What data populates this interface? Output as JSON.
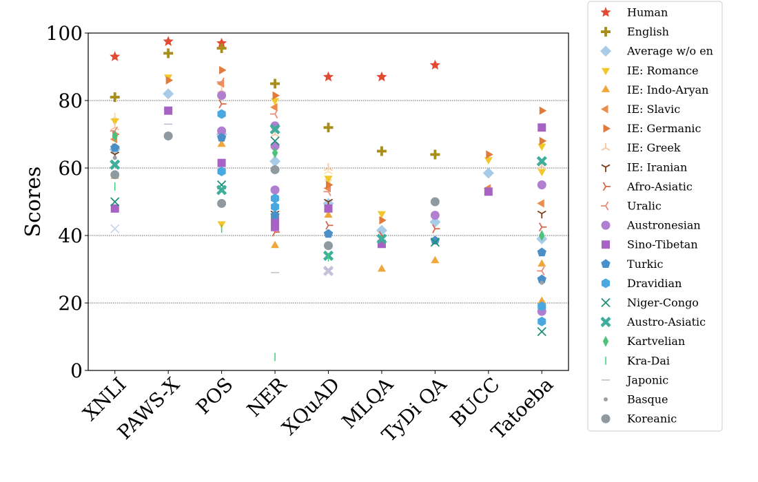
{
  "chart_data": {
    "type": "scatter",
    "ylabel": "Scores",
    "xlabel": "",
    "ylim": [
      0,
      100
    ],
    "yticks": [
      0,
      20,
      40,
      60,
      80,
      100
    ],
    "categories": [
      "XNLI",
      "PAWS-X",
      "POS",
      "NER",
      "XQuAD",
      "MLQA",
      "TyDi QA",
      "BUCC",
      "Tatoeba"
    ],
    "grid": "horizontal dotted at 20, 40, 60, 80",
    "legend_position": "outside-right",
    "series": [
      {
        "name": "Human",
        "marker": "star",
        "color": "#e24a33",
        "points": [
          {
            "c": "XNLI",
            "y": 93
          },
          {
            "c": "PAWS-X",
            "y": 97.5
          },
          {
            "c": "POS",
            "y": 97
          },
          {
            "c": "XQuAD",
            "y": 87
          },
          {
            "c": "MLQA",
            "y": 87
          },
          {
            "c": "TyDi QA",
            "y": 90.5
          }
        ]
      },
      {
        "name": "English",
        "marker": "plus",
        "color": "#a88d1a",
        "points": [
          {
            "c": "XNLI",
            "y": 81
          },
          {
            "c": "PAWS-X",
            "y": 94
          },
          {
            "c": "POS",
            "y": 95.5
          },
          {
            "c": "NER",
            "y": 85
          },
          {
            "c": "XQuAD",
            "y": 72
          },
          {
            "c": "MLQA",
            "y": 65
          },
          {
            "c": "TyDi QA",
            "y": 64
          }
        ]
      },
      {
        "name": "Average w/o en",
        "marker": "diamond",
        "color": "#a8cbe8",
        "points": [
          {
            "c": "XNLI",
            "y": 65.5
          },
          {
            "c": "PAWS-X",
            "y": 82
          },
          {
            "c": "POS",
            "y": 70
          },
          {
            "c": "NER",
            "y": 62
          },
          {
            "c": "XQuAD",
            "y": 49.5
          },
          {
            "c": "MLQA",
            "y": 41.5
          },
          {
            "c": "TyDi QA",
            "y": 44
          },
          {
            "c": "BUCC",
            "y": 58.5
          },
          {
            "c": "Tatoeba",
            "y": 39
          }
        ]
      },
      {
        "name": "IE: Romance",
        "marker": "triangle_down",
        "color": "#f2c72c",
        "points": [
          {
            "c": "XNLI",
            "y": 74
          },
          {
            "c": "PAWS-X",
            "y": 87
          },
          {
            "c": "POS",
            "y": 43.5
          },
          {
            "c": "NER",
            "y": 80
          },
          {
            "c": "XQuAD",
            "y": 57
          },
          {
            "c": "MLQA",
            "y": 46.5
          },
          {
            "c": "BUCC",
            "y": 62.5
          },
          {
            "c": "Tatoeba",
            "y": 59
          },
          {
            "c": "Tatoeba",
            "y": 66.5
          }
        ]
      },
      {
        "name": "IE: Indo-Aryan",
        "marker": "triangle_up",
        "color": "#f0a63a",
        "points": [
          {
            "c": "XNLI",
            "y": 57.5
          },
          {
            "c": "POS",
            "y": 67
          },
          {
            "c": "NER",
            "y": 37
          },
          {
            "c": "XQuAD",
            "y": 46
          },
          {
            "c": "MLQA",
            "y": 30
          },
          {
            "c": "TyDi QA",
            "y": 32.5
          },
          {
            "c": "Tatoeba",
            "y": 31.5
          },
          {
            "c": "Tatoeba",
            "y": 20.5
          }
        ]
      },
      {
        "name": "IE: Slavic",
        "marker": "triangle_left",
        "color": "#ec8b4a",
        "points": [
          {
            "c": "XNLI",
            "y": 68.5
          },
          {
            "c": "POS",
            "y": 85
          },
          {
            "c": "NER",
            "y": 78
          },
          {
            "c": "XQuAD",
            "y": 54
          },
          {
            "c": "BUCC",
            "y": 54
          },
          {
            "c": "Tatoeba",
            "y": 49.5
          }
        ]
      },
      {
        "name": "IE: Germanic",
        "marker": "triangle_right",
        "color": "#e07b3c",
        "points": [
          {
            "c": "XNLI",
            "y": 70
          },
          {
            "c": "PAWS-X",
            "y": 86
          },
          {
            "c": "POS",
            "y": 89
          },
          {
            "c": "NER",
            "y": 81.5
          },
          {
            "c": "XQuAD",
            "y": 55
          },
          {
            "c": "MLQA",
            "y": 44.5
          },
          {
            "c": "BUCC",
            "y": 64
          },
          {
            "c": "Tatoeba",
            "y": 77
          },
          {
            "c": "Tatoeba",
            "y": 68
          }
        ]
      },
      {
        "name": "IE: Greek",
        "marker": "tri_down",
        "color": "#f4c7a0",
        "points": [
          {
            "c": "XNLI",
            "y": 72
          },
          {
            "c": "POS",
            "y": 83
          },
          {
            "c": "NER",
            "y": 70
          },
          {
            "c": "XQuAD",
            "y": 60
          },
          {
            "c": "Tatoeba",
            "y": 60.5
          }
        ]
      },
      {
        "name": "IE: Iranian",
        "marker": "tri_up",
        "color": "#7a3a14",
        "points": [
          {
            "c": "XNLI",
            "y": 64
          },
          {
            "c": "NER",
            "y": 46.5
          },
          {
            "c": "XQuAD",
            "y": 50
          },
          {
            "c": "Tatoeba",
            "y": 46.5
          }
        ]
      },
      {
        "name": "Afro-Asiatic",
        "marker": "tri_left",
        "color": "#d4694a",
        "points": [
          {
            "c": "XNLI",
            "y": 66
          },
          {
            "c": "POS",
            "y": 79
          },
          {
            "c": "NER",
            "y": 41
          },
          {
            "c": "XQuAD",
            "y": 43
          },
          {
            "c": "MLQA",
            "y": 40
          },
          {
            "c": "TyDi QA",
            "y": 42
          },
          {
            "c": "Tatoeba",
            "y": 42.5
          }
        ]
      },
      {
        "name": "Uralic",
        "marker": "tri_right",
        "color": "#e98a7a",
        "points": [
          {
            "c": "XNLI",
            "y": 71
          },
          {
            "c": "POS",
            "y": 85.5
          },
          {
            "c": "NER",
            "y": 76
          },
          {
            "c": "XQuAD",
            "y": 53
          },
          {
            "c": "Tatoeba",
            "y": 29.5
          }
        ]
      },
      {
        "name": "Austronesian",
        "marker": "circle",
        "color": "#b07fcf",
        "points": [
          {
            "c": "POS",
            "y": 81.5
          },
          {
            "c": "POS",
            "y": 71
          },
          {
            "c": "NER",
            "y": 72.5
          },
          {
            "c": "NER",
            "y": 66.5
          },
          {
            "c": "NER",
            "y": 53.5
          },
          {
            "c": "TyDi QA",
            "y": 46
          },
          {
            "c": "Tatoeba",
            "y": 55
          },
          {
            "c": "Tatoeba",
            "y": 17.5
          }
        ]
      },
      {
        "name": "Sino-Tibetan",
        "marker": "square",
        "color": "#a663c4",
        "points": [
          {
            "c": "XNLI",
            "y": 48
          },
          {
            "c": "PAWS-X",
            "y": 77
          },
          {
            "c": "POS",
            "y": 61.5
          },
          {
            "c": "NER",
            "y": 44.5
          },
          {
            "c": "NER",
            "y": 42.5
          },
          {
            "c": "XQuAD",
            "y": 48
          },
          {
            "c": "MLQA",
            "y": 37.5
          },
          {
            "c": "BUCC",
            "y": 53
          },
          {
            "c": "Tatoeba",
            "y": 72
          }
        ]
      },
      {
        "name": "Turkic",
        "marker": "pentagon",
        "color": "#4a90c8",
        "points": [
          {
            "c": "XNLI",
            "y": 66
          },
          {
            "c": "POS",
            "y": 69
          },
          {
            "c": "NER",
            "y": 46
          },
          {
            "c": "XQuAD",
            "y": 40.5
          },
          {
            "c": "TyDi QA",
            "y": 38.5
          },
          {
            "c": "Tatoeba",
            "y": 35
          },
          {
            "c": "Tatoeba",
            "y": 27
          }
        ]
      },
      {
        "name": "Dravidian",
        "marker": "hexagon",
        "color": "#4aa8e0",
        "points": [
          {
            "c": "POS",
            "y": 76
          },
          {
            "c": "POS",
            "y": 59
          },
          {
            "c": "NER",
            "y": 51
          },
          {
            "c": "NER",
            "y": 48.5
          },
          {
            "c": "Tatoeba",
            "y": 19
          },
          {
            "c": "Tatoeba",
            "y": 14.5
          }
        ]
      },
      {
        "name": "Niger-Congo",
        "marker": "x",
        "color": "#1e8f7a",
        "points": [
          {
            "c": "XNLI",
            "y": 50
          },
          {
            "c": "POS",
            "y": 55
          },
          {
            "c": "NER",
            "y": 68
          },
          {
            "c": "TyDi QA",
            "y": 38
          },
          {
            "c": "Tatoeba",
            "y": 11.5
          }
        ]
      },
      {
        "name": "Austro-Asiatic",
        "marker": "X",
        "color": "#3fae9a",
        "points": [
          {
            "c": "XNLI",
            "y": 61
          },
          {
            "c": "POS",
            "y": 53.5
          },
          {
            "c": "NER",
            "y": 71.5
          },
          {
            "c": "XQuAD",
            "y": 34
          },
          {
            "c": "MLQA",
            "y": 39
          },
          {
            "c": "Tatoeba",
            "y": 62
          }
        ]
      },
      {
        "name": "Kartvelian",
        "marker": "thin_diamond",
        "color": "#4cc27a",
        "points": [
          {
            "c": "XNLI",
            "y": 69.5
          },
          {
            "c": "NER",
            "y": 64.5
          },
          {
            "c": "Tatoeba",
            "y": 40
          }
        ]
      },
      {
        "name": "Kra-Dai",
        "marker": "vline",
        "color": "#3ccf7a",
        "points": [
          {
            "c": "XNLI",
            "y": 54.5
          },
          {
            "c": "POS",
            "y": 42
          },
          {
            "c": "NER",
            "y": 4
          },
          {
            "c": "XQuAD",
            "y": 33.5
          }
        ]
      },
      {
        "name": "Japonic",
        "marker": "hline",
        "color": "#c0b8d0",
        "points": [
          {
            "c": "PAWS-X",
            "y": 73
          },
          {
            "c": "NER",
            "y": 29
          },
          {
            "c": "XQuAD",
            "y": 30
          }
        ]
      },
      {
        "name": "Basque",
        "marker": "point",
        "color": "#9aa0a6",
        "points": [
          {
            "c": "XNLI",
            "y": 63
          },
          {
            "c": "Tatoeba",
            "y": 26
          }
        ]
      },
      {
        "name": "Koreanic",
        "marker": "circle",
        "color": "#8e9aa0",
        "points": [
          {
            "c": "XNLI",
            "y": 58
          },
          {
            "c": "PAWS-X",
            "y": 69.5
          },
          {
            "c": "POS",
            "y": 49.5
          },
          {
            "c": "NER",
            "y": 59.5
          },
          {
            "c": "XQuAD",
            "y": 37
          },
          {
            "c": "TyDi QA",
            "y": 50
          }
        ]
      }
    ],
    "extra_marks": [
      {
        "c": "XNLI",
        "y": 42,
        "marker": "x",
        "color": "#c9d6ea"
      },
      {
        "c": "XNLI",
        "y": 75,
        "marker": "tri_down",
        "color": "#f6d9b8"
      },
      {
        "c": "XQuAD",
        "y": 29.5,
        "marker": "X",
        "color": "#c9c0dd"
      },
      {
        "c": "XQuAD",
        "y": 59,
        "marker": "tri_down",
        "color": "#f6e3b0"
      },
      {
        "c": "XQuAD",
        "y": 56,
        "marker": "triangle_down",
        "color": "#f6e3b0"
      }
    ]
  }
}
